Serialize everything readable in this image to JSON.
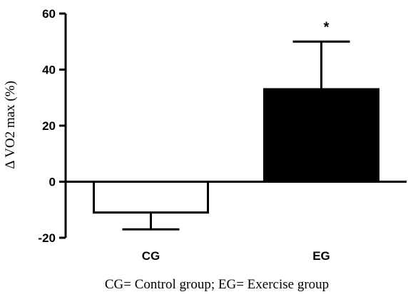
{
  "chart_data": {
    "type": "bar",
    "categories": [
      "CG",
      "EG"
    ],
    "values": [
      -11,
      33
    ],
    "error_bars": [
      6,
      17
    ],
    "bar_fill": [
      "#ffffff",
      "#000000"
    ],
    "ylabel": "Δ VO2 max (%)",
    "ylim": [
      -20,
      60
    ],
    "yticks": [
      -20,
      0,
      20,
      40,
      60
    ],
    "ytick_labels": [
      "-20",
      "0",
      "20",
      "40",
      "60"
    ],
    "annotations": [
      {
        "category": "EG",
        "text": "*"
      }
    ],
    "caption": "CG= Control group; EG= Exercise group",
    "grid": false
  }
}
